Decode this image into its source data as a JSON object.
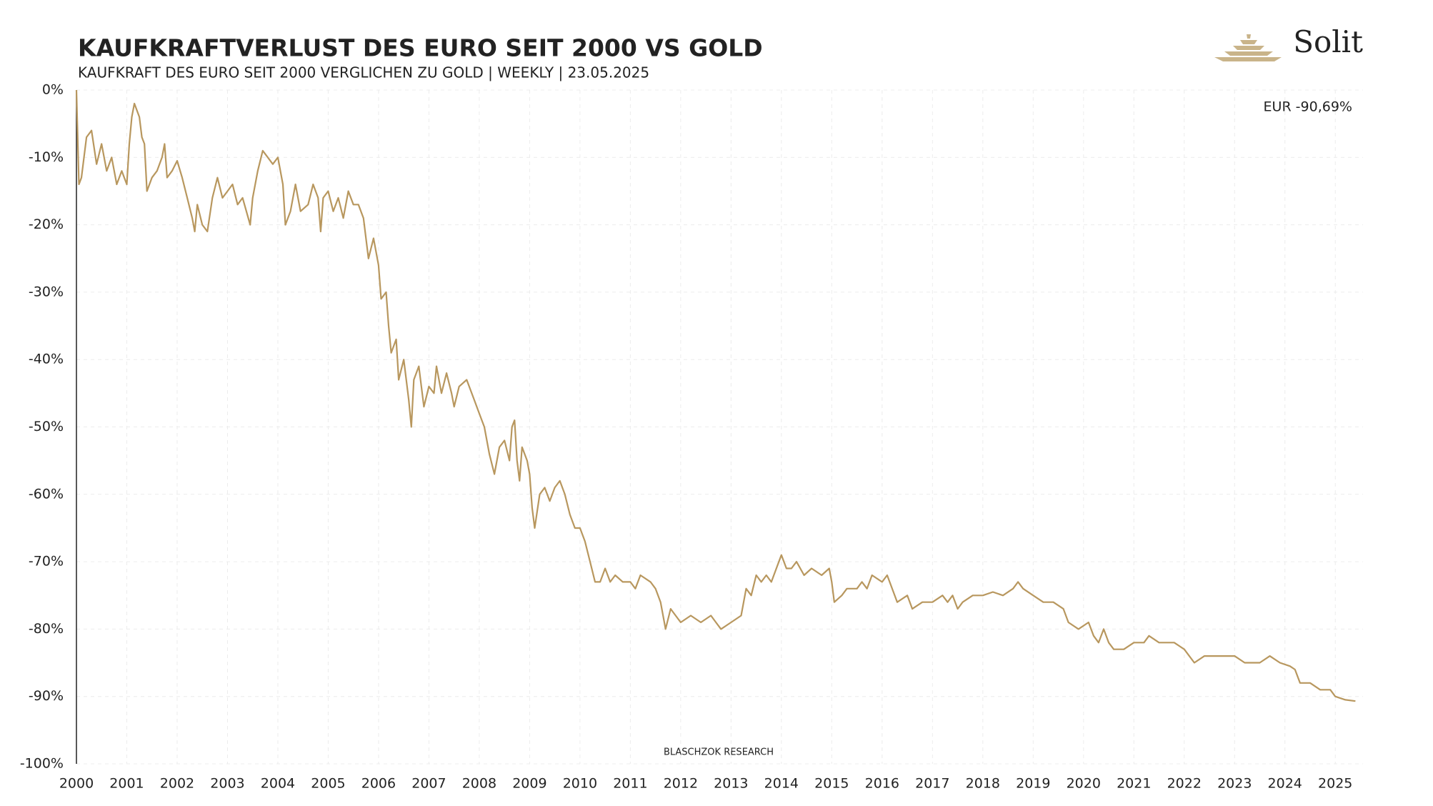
{
  "chart_data": {
    "type": "line",
    "title": "KAUFKRAFTVERLUST DES EURO SEIT 2000 VS GOLD",
    "subtitle": "KAUFKRAFT DES EURO SEIT 2000 VERGLICHEN ZU GOLD | WEEKLY |  23.05.2025",
    "annotation": "EUR -90,69%",
    "source": "BLASCHZOK RESEARCH",
    "logo": "Solit",
    "x": [
      2000.0,
      2000.05,
      2000.1,
      2000.2,
      2000.3,
      2000.4,
      2000.5,
      2000.6,
      2000.7,
      2000.8,
      2000.9,
      2001.0,
      2001.05,
      2001.1,
      2001.15,
      2001.25,
      2001.3,
      2001.35,
      2001.4,
      2001.5,
      2001.6,
      2001.7,
      2001.75,
      2001.8,
      2001.9,
      2002.0,
      2002.1,
      2002.2,
      2002.3,
      2002.35,
      2002.4,
      2002.5,
      2002.6,
      2002.7,
      2002.8,
      2002.9,
      2003.0,
      2003.1,
      2003.2,
      2003.3,
      2003.45,
      2003.5,
      2003.6,
      2003.7,
      2003.8,
      2003.9,
      2004.0,
      2004.1,
      2004.15,
      2004.25,
      2004.35,
      2004.45,
      2004.6,
      2004.7,
      2004.8,
      2004.85,
      2004.9,
      2005.0,
      2005.1,
      2005.2,
      2005.3,
      2005.4,
      2005.5,
      2005.6,
      2005.7,
      2005.8,
      2005.9,
      2006.0,
      2006.05,
      2006.15,
      2006.2,
      2006.25,
      2006.35,
      2006.4,
      2006.5,
      2006.6,
      2006.65,
      2006.7,
      2006.8,
      2006.9,
      2007.0,
      2007.1,
      2007.15,
      2007.25,
      2007.35,
      2007.45,
      2007.5,
      2007.6,
      2007.75,
      2007.9,
      2008.0,
      2008.1,
      2008.2,
      2008.3,
      2008.4,
      2008.5,
      2008.6,
      2008.65,
      2008.7,
      2008.75,
      2008.8,
      2008.85,
      2008.95,
      2009.0,
      2009.05,
      2009.1,
      2009.2,
      2009.3,
      2009.4,
      2009.5,
      2009.6,
      2009.7,
      2009.8,
      2009.9,
      2010.0,
      2010.1,
      2010.2,
      2010.3,
      2010.4,
      2010.5,
      2010.6,
      2010.7,
      2010.85,
      2011.0,
      2011.1,
      2011.2,
      2011.4,
      2011.5,
      2011.6,
      2011.7,
      2011.8,
      2011.9,
      2012.0,
      2012.2,
      2012.4,
      2012.6,
      2012.7,
      2012.8,
      2013.0,
      2013.2,
      2013.3,
      2013.4,
      2013.5,
      2013.6,
      2013.7,
      2013.8,
      2013.9,
      2014.0,
      2014.1,
      2014.2,
      2014.3,
      2014.45,
      2014.6,
      2014.8,
      2014.95,
      2015.0,
      2015.05,
      2015.2,
      2015.3,
      2015.5,
      2015.6,
      2015.7,
      2015.8,
      2016.0,
      2016.1,
      2016.2,
      2016.3,
      2016.5,
      2016.6,
      2016.8,
      2017.0,
      2017.2,
      2017.3,
      2017.4,
      2017.5,
      2017.6,
      2017.8,
      2018.0,
      2018.2,
      2018.4,
      2018.6,
      2018.7,
      2018.8,
      2019.0,
      2019.2,
      2019.4,
      2019.6,
      2019.7,
      2019.9,
      2020.1,
      2020.2,
      2020.3,
      2020.4,
      2020.5,
      2020.6,
      2020.8,
      2021.0,
      2021.2,
      2021.3,
      2021.5,
      2021.8,
      2022.0,
      2022.2,
      2022.4,
      2022.6,
      2022.8,
      2023.0,
      2023.2,
      2023.5,
      2023.7,
      2023.9,
      2024.1,
      2024.2,
      2024.3,
      2024.5,
      2024.7,
      2024.9,
      2025.0,
      2025.2,
      2025.4
    ],
    "series": [
      {
        "name": "EUR",
        "color": "#b8975e",
        "values": [
          0,
          -14,
          -13,
          -7,
          -6,
          -11,
          -8,
          -12,
          -10,
          -14,
          -12,
          -14,
          -8,
          -4,
          -2,
          -4,
          -7,
          -8,
          -15,
          -13,
          -12,
          -10,
          -8,
          -13,
          -12,
          -10.5,
          -13,
          -16,
          -19,
          -21,
          -17,
          -20,
          -21,
          -16,
          -13,
          -16,
          -15,
          -14,
          -17,
          -16,
          -20,
          -16,
          -12,
          -9,
          -10,
          -11,
          -10,
          -14,
          -20,
          -18,
          -14,
          -18,
          -17,
          -14,
          -16,
          -21,
          -16,
          -15,
          -18,
          -16,
          -19,
          -15,
          -17,
          -17,
          -19,
          -25,
          -22,
          -26,
          -31,
          -30,
          -35,
          -39,
          -37,
          -43,
          -40,
          -46,
          -50,
          -43,
          -41,
          -47,
          -44,
          -45,
          -41,
          -45,
          -42,
          -45,
          -47,
          -44,
          -43,
          -46,
          -48,
          -50,
          -54,
          -57,
          -53,
          -52,
          -55,
          -50,
          -49,
          -55,
          -58,
          -53,
          -55,
          -57,
          -62,
          -65,
          -60,
          -59,
          -61,
          -59,
          -58,
          -60,
          -63,
          -65,
          -65,
          -67,
          -70,
          -73,
          -73,
          -71,
          -73,
          -72,
          -73,
          -73,
          -74,
          -72,
          -73,
          -74,
          -76,
          -80,
          -77,
          -78,
          -79,
          -78,
          -79,
          -78,
          -79,
          -80,
          -79,
          -78,
          -74,
          -75,
          -72,
          -73,
          -72,
          -73,
          -71,
          -69,
          -71,
          -71,
          -70,
          -72,
          -71,
          -72,
          -71,
          -73,
          -76,
          -75,
          -74,
          -74,
          -73,
          -74,
          -72,
          -73,
          -72,
          -74,
          -76,
          -75,
          -77,
          -76,
          -76,
          -75,
          -76,
          -75,
          -77,
          -76,
          -75,
          -75,
          -74.5,
          -75,
          -74,
          -73,
          -74,
          -75,
          -76,
          -76,
          -77,
          -79,
          -80,
          -79,
          -81,
          -82,
          -80,
          -82,
          -83,
          -83,
          -82,
          -82,
          -81,
          -82,
          -82,
          -83,
          -85,
          -84,
          -84,
          -84,
          -84,
          -85,
          -85,
          -84,
          -85,
          -85.5,
          -86,
          -88,
          -88,
          -89,
          -89,
          -90,
          -90.5,
          -90.69
        ]
      }
    ],
    "xlim": [
      2000,
      2025.55
    ],
    "xticks": [
      2000,
      2001,
      2002,
      2003,
      2004,
      2005,
      2006,
      2007,
      2008,
      2009,
      2010,
      2011,
      2012,
      2013,
      2014,
      2015,
      2016,
      2017,
      2018,
      2019,
      2020,
      2021,
      2022,
      2023,
      2024,
      2025
    ],
    "ylim": [
      -100,
      0
    ],
    "yticks": [
      {
        "value": 0,
        "label": "0%"
      },
      {
        "value": -10,
        "label": "-10%"
      },
      {
        "value": -20,
        "label": "-20%"
      },
      {
        "value": -30,
        "label": "-30%"
      },
      {
        "value": -40,
        "label": "-40%"
      },
      {
        "value": -50,
        "label": "-50%"
      },
      {
        "value": -60,
        "label": "-60%"
      },
      {
        "value": -70,
        "label": "-70%"
      },
      {
        "value": -80,
        "label": "-80%"
      },
      {
        "value": -90,
        "label": "-90%"
      },
      {
        "value": -100,
        "label": "-100%"
      }
    ],
    "grid": true
  }
}
